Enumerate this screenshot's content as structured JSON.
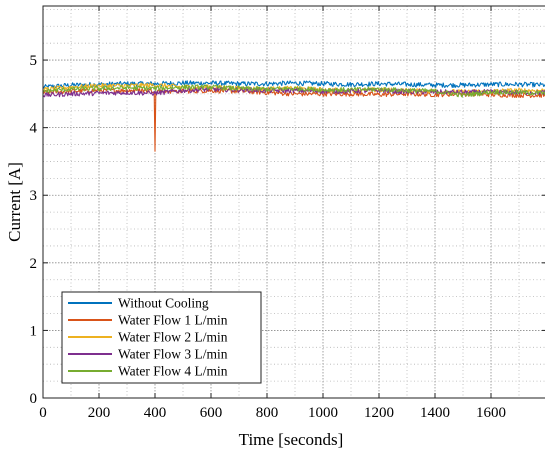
{
  "chart_data": {
    "type": "line",
    "xlabel": "Time [seconds]",
    "ylabel": "Current [A]",
    "xlim": [
      0,
      1800
    ],
    "ylim": [
      0,
      5.8
    ],
    "xticks": [
      0,
      200,
      400,
      600,
      800,
      1000,
      1200,
      1400,
      1600
    ],
    "xtick_labels": [
      "0",
      "200",
      "400",
      "600",
      "800",
      "1000",
      "1200",
      "1400",
      "1600"
    ],
    "yticks": [
      0,
      1,
      2,
      3,
      4,
      5
    ],
    "ytick_labels": [
      "0",
      "1",
      "2",
      "3",
      "4",
      "5"
    ],
    "grid": true,
    "legend_position": "bottom-left",
    "x": [
      0,
      100,
      200,
      300,
      400,
      500,
      600,
      700,
      800,
      900,
      1000,
      1100,
      1200,
      1300,
      1400,
      1500,
      1600,
      1700,
      1800
    ],
    "series": [
      {
        "name": "Without Cooling",
        "color": "#0072BD",
        "values": [
          4.6,
          4.63,
          4.64,
          4.65,
          4.65,
          4.66,
          4.66,
          4.65,
          4.65,
          4.66,
          4.65,
          4.64,
          4.65,
          4.64,
          4.63,
          4.63,
          4.64,
          4.64,
          4.63
        ]
      },
      {
        "name": "Water Flow 1 L/min",
        "color": "#D95319",
        "values": [
          4.52,
          4.54,
          4.55,
          4.55,
          3.65,
          4.54,
          4.55,
          4.54,
          4.52,
          4.5,
          4.5,
          4.5,
          4.49,
          4.5,
          4.49,
          4.5,
          4.49,
          4.48,
          4.48
        ]
      },
      {
        "name": "Water Flow 2 L/min",
        "color": "#EDB120",
        "values": [
          4.56,
          4.6,
          4.62,
          4.62,
          4.63,
          4.6,
          4.6,
          4.58,
          4.57,
          4.58,
          4.56,
          4.55,
          4.56,
          4.55,
          4.54,
          4.53,
          4.54,
          4.55,
          4.55
        ]
      },
      {
        "name": "Water Flow 3 L/min",
        "color": "#7E2F8E",
        "values": [
          4.48,
          4.5,
          4.51,
          4.52,
          4.51,
          4.55,
          4.57,
          4.56,
          4.55,
          4.55,
          4.54,
          4.54,
          4.55,
          4.53,
          4.53,
          4.52,
          4.53,
          4.52,
          4.52
        ]
      },
      {
        "name": "Water Flow 4 L/min",
        "color": "#77AC30",
        "values": [
          4.54,
          4.57,
          4.58,
          4.59,
          4.58,
          4.6,
          4.6,
          4.58,
          4.57,
          4.58,
          4.56,
          4.56,
          4.57,
          4.55,
          4.54,
          4.48,
          4.53,
          4.52,
          4.51
        ]
      }
    ]
  }
}
